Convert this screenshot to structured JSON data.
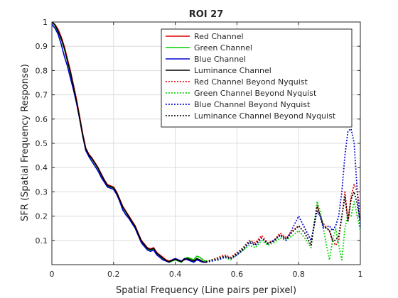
{
  "chart_data": {
    "type": "line",
    "title": "ROI 27",
    "xlabel": "Spatial Frequency (Line pairs per pixel)",
    "ylabel": "SFR (Spatial Frequency Response)",
    "xlim": [
      0,
      1
    ],
    "ylim": [
      0,
      1
    ],
    "xticks": [
      0,
      0.2,
      0.4,
      0.6,
      0.8,
      1
    ],
    "xtick_labels": [
      "0",
      "0.2",
      "0.4",
      "0.6",
      "0.8",
      "1"
    ],
    "yticks": [
      0.1,
      0.2,
      0.3,
      0.4,
      0.5,
      0.6,
      0.7,
      0.8,
      0.9,
      1
    ],
    "ytick_labels": [
      "0.1",
      "0.2",
      "0.3",
      "0.4",
      "0.5",
      "0.6",
      "0.7",
      "0.8",
      "0.9",
      "1"
    ],
    "grid": true,
    "legend_position": "top-right",
    "colors": {
      "red": "#e00000",
      "green": "#00d000",
      "blue": "#0000d0",
      "luminance": "#000000",
      "grid": "#dcdcdc",
      "axis": "#262626"
    },
    "series": [
      {
        "name": "Red Channel",
        "color": "red",
        "style": "solid",
        "x": [
          0,
          0.01,
          0.02,
          0.03,
          0.04,
          0.05,
          0.06,
          0.07,
          0.08,
          0.09,
          0.1,
          0.11,
          0.12,
          0.13,
          0.14,
          0.15,
          0.16,
          0.17,
          0.18,
          0.19,
          0.2,
          0.21,
          0.22,
          0.23,
          0.24,
          0.25,
          0.26,
          0.27,
          0.28,
          0.29,
          0.3,
          0.31,
          0.32,
          0.33,
          0.34,
          0.35,
          0.36,
          0.37,
          0.38,
          0.39,
          0.4,
          0.41,
          0.42,
          0.43,
          0.44,
          0.45,
          0.46,
          0.47,
          0.48,
          0.49,
          0.5
        ],
        "y": [
          1.0,
          0.99,
          0.97,
          0.94,
          0.9,
          0.85,
          0.8,
          0.74,
          0.68,
          0.61,
          0.54,
          0.48,
          0.455,
          0.44,
          0.42,
          0.4,
          0.375,
          0.35,
          0.33,
          0.325,
          0.32,
          0.3,
          0.27,
          0.24,
          0.22,
          0.2,
          0.18,
          0.16,
          0.13,
          0.1,
          0.085,
          0.07,
          0.065,
          0.07,
          0.05,
          0.04,
          0.03,
          0.02,
          0.015,
          0.02,
          0.025,
          0.02,
          0.015,
          0.02,
          0.025,
          0.02,
          0.015,
          0.02,
          0.015,
          0.01,
          0.01
        ]
      },
      {
        "name": "Green Channel",
        "color": "green",
        "style": "solid",
        "x": [
          0,
          0.01,
          0.02,
          0.03,
          0.04,
          0.05,
          0.06,
          0.07,
          0.08,
          0.09,
          0.1,
          0.11,
          0.12,
          0.13,
          0.14,
          0.15,
          0.16,
          0.17,
          0.18,
          0.19,
          0.2,
          0.21,
          0.22,
          0.23,
          0.24,
          0.25,
          0.26,
          0.27,
          0.28,
          0.29,
          0.3,
          0.31,
          0.32,
          0.33,
          0.34,
          0.35,
          0.36,
          0.37,
          0.38,
          0.39,
          0.4,
          0.41,
          0.42,
          0.43,
          0.44,
          0.45,
          0.46,
          0.47,
          0.48,
          0.49,
          0.5
        ],
        "y": [
          1.0,
          0.985,
          0.96,
          0.93,
          0.89,
          0.84,
          0.79,
          0.73,
          0.67,
          0.6,
          0.53,
          0.475,
          0.45,
          0.435,
          0.415,
          0.395,
          0.37,
          0.345,
          0.325,
          0.32,
          0.315,
          0.295,
          0.265,
          0.235,
          0.215,
          0.195,
          0.175,
          0.155,
          0.125,
          0.095,
          0.08,
          0.065,
          0.06,
          0.065,
          0.045,
          0.035,
          0.025,
          0.015,
          0.01,
          0.015,
          0.02,
          0.015,
          0.01,
          0.025,
          0.03,
          0.025,
          0.02,
          0.035,
          0.03,
          0.02,
          0.015
        ]
      },
      {
        "name": "Blue Channel",
        "color": "blue",
        "style": "solid",
        "x": [
          0,
          0.01,
          0.02,
          0.03,
          0.04,
          0.05,
          0.06,
          0.07,
          0.08,
          0.09,
          0.1,
          0.11,
          0.12,
          0.13,
          0.14,
          0.15,
          0.16,
          0.17,
          0.18,
          0.19,
          0.2,
          0.21,
          0.22,
          0.23,
          0.24,
          0.25,
          0.26,
          0.27,
          0.28,
          0.29,
          0.3,
          0.31,
          0.32,
          0.33,
          0.34,
          0.35,
          0.36,
          0.37,
          0.38,
          0.39,
          0.4,
          0.41,
          0.42,
          0.43,
          0.44,
          0.45,
          0.46,
          0.47,
          0.48,
          0.49,
          0.5
        ],
        "y": [
          0.99,
          0.975,
          0.95,
          0.91,
          0.86,
          0.82,
          0.77,
          0.72,
          0.665,
          0.6,
          0.53,
          0.47,
          0.445,
          0.425,
          0.405,
          0.385,
          0.36,
          0.34,
          0.32,
          0.315,
          0.31,
          0.29,
          0.26,
          0.225,
          0.205,
          0.19,
          0.17,
          0.15,
          0.12,
          0.09,
          0.075,
          0.06,
          0.055,
          0.06,
          0.04,
          0.03,
          0.02,
          0.015,
          0.01,
          0.02,
          0.025,
          0.02,
          0.015,
          0.025,
          0.02,
          0.015,
          0.01,
          0.02,
          0.015,
          0.01,
          0.01
        ]
      },
      {
        "name": "Luminance Channel",
        "color": "luminance",
        "style": "solid",
        "x": [
          0,
          0.01,
          0.02,
          0.03,
          0.04,
          0.05,
          0.06,
          0.07,
          0.08,
          0.09,
          0.1,
          0.11,
          0.12,
          0.13,
          0.14,
          0.15,
          0.16,
          0.17,
          0.18,
          0.19,
          0.2,
          0.21,
          0.22,
          0.23,
          0.24,
          0.25,
          0.26,
          0.27,
          0.28,
          0.29,
          0.3,
          0.31,
          0.32,
          0.33,
          0.34,
          0.35,
          0.36,
          0.37,
          0.38,
          0.39,
          0.4,
          0.41,
          0.42,
          0.43,
          0.44,
          0.45,
          0.46,
          0.47,
          0.48,
          0.49,
          0.5
        ],
        "y": [
          1.0,
          0.988,
          0.963,
          0.933,
          0.893,
          0.843,
          0.793,
          0.733,
          0.673,
          0.603,
          0.533,
          0.478,
          0.452,
          0.437,
          0.417,
          0.397,
          0.372,
          0.347,
          0.327,
          0.322,
          0.317,
          0.297,
          0.267,
          0.237,
          0.217,
          0.197,
          0.177,
          0.157,
          0.127,
          0.097,
          0.082,
          0.067,
          0.062,
          0.067,
          0.047,
          0.037,
          0.027,
          0.017,
          0.012,
          0.017,
          0.022,
          0.017,
          0.012,
          0.022,
          0.025,
          0.02,
          0.015,
          0.025,
          0.02,
          0.012,
          0.01
        ]
      },
      {
        "name": "Red Channel Beyond Nyquist",
        "color": "red",
        "style": "dotted",
        "x": [
          0.5,
          0.52,
          0.54,
          0.56,
          0.58,
          0.6,
          0.62,
          0.64,
          0.66,
          0.68,
          0.7,
          0.72,
          0.74,
          0.76,
          0.78,
          0.8,
          0.82,
          0.84,
          0.86,
          0.87,
          0.88,
          0.9,
          0.91,
          0.92,
          0.93,
          0.94,
          0.95,
          0.96,
          0.97,
          0.98,
          0.99,
          1.0
        ],
        "y": [
          0.01,
          0.02,
          0.03,
          0.04,
          0.03,
          0.05,
          0.07,
          0.1,
          0.09,
          0.12,
          0.09,
          0.1,
          0.13,
          0.11,
          0.14,
          0.16,
          0.13,
          0.08,
          0.25,
          0.2,
          0.17,
          0.14,
          0.1,
          0.08,
          0.1,
          0.2,
          0.3,
          0.18,
          0.28,
          0.33,
          0.3,
          0.22
        ]
      },
      {
        "name": "Green Channel Beyond Nyquist",
        "color": "green",
        "style": "dotted",
        "x": [
          0.5,
          0.52,
          0.54,
          0.56,
          0.58,
          0.6,
          0.62,
          0.64,
          0.66,
          0.68,
          0.7,
          0.72,
          0.74,
          0.76,
          0.78,
          0.8,
          0.82,
          0.84,
          0.86,
          0.87,
          0.88,
          0.89,
          0.9,
          0.91,
          0.92,
          0.93,
          0.94,
          0.95,
          0.96,
          0.97,
          0.98,
          0.99,
          1.0
        ],
        "y": [
          0.015,
          0.02,
          0.02,
          0.03,
          0.02,
          0.04,
          0.06,
          0.08,
          0.07,
          0.1,
          0.08,
          0.09,
          0.11,
          0.1,
          0.12,
          0.14,
          0.11,
          0.07,
          0.26,
          0.22,
          0.15,
          0.08,
          0.02,
          0.1,
          0.15,
          0.08,
          0.02,
          0.15,
          0.21,
          0.2,
          0.26,
          0.2,
          0.14
        ]
      },
      {
        "name": "Blue Channel Beyond Nyquist",
        "color": "blue",
        "style": "dotted",
        "x": [
          0.5,
          0.52,
          0.54,
          0.56,
          0.58,
          0.6,
          0.62,
          0.64,
          0.66,
          0.68,
          0.7,
          0.72,
          0.74,
          0.76,
          0.78,
          0.8,
          0.82,
          0.84,
          0.86,
          0.87,
          0.88,
          0.9,
          0.91,
          0.92,
          0.93,
          0.94,
          0.95,
          0.96,
          0.97,
          0.98,
          0.99,
          1.0
        ],
        "y": [
          0.01,
          0.015,
          0.02,
          0.03,
          0.025,
          0.04,
          0.06,
          0.09,
          0.08,
          0.11,
          0.085,
          0.1,
          0.12,
          0.1,
          0.15,
          0.2,
          0.15,
          0.1,
          0.22,
          0.2,
          0.15,
          0.16,
          0.14,
          0.16,
          0.2,
          0.3,
          0.45,
          0.55,
          0.56,
          0.5,
          0.3,
          0.15
        ]
      },
      {
        "name": "Luminance Channel Beyond Nyquist",
        "color": "luminance",
        "style": "dotted",
        "x": [
          0.5,
          0.52,
          0.54,
          0.56,
          0.58,
          0.6,
          0.62,
          0.64,
          0.66,
          0.68,
          0.7,
          0.72,
          0.74,
          0.76,
          0.78,
          0.8,
          0.82,
          0.84,
          0.86,
          0.87,
          0.88,
          0.9,
          0.91,
          0.92,
          0.93,
          0.94,
          0.95,
          0.96,
          0.97,
          0.98,
          0.99,
          1.0
        ],
        "y": [
          0.012,
          0.02,
          0.025,
          0.035,
          0.027,
          0.045,
          0.065,
          0.095,
          0.085,
          0.11,
          0.087,
          0.097,
          0.125,
          0.105,
          0.135,
          0.16,
          0.13,
          0.08,
          0.24,
          0.2,
          0.16,
          0.14,
          0.1,
          0.1,
          0.12,
          0.2,
          0.28,
          0.18,
          0.27,
          0.3,
          0.25,
          0.18
        ]
      }
    ]
  }
}
